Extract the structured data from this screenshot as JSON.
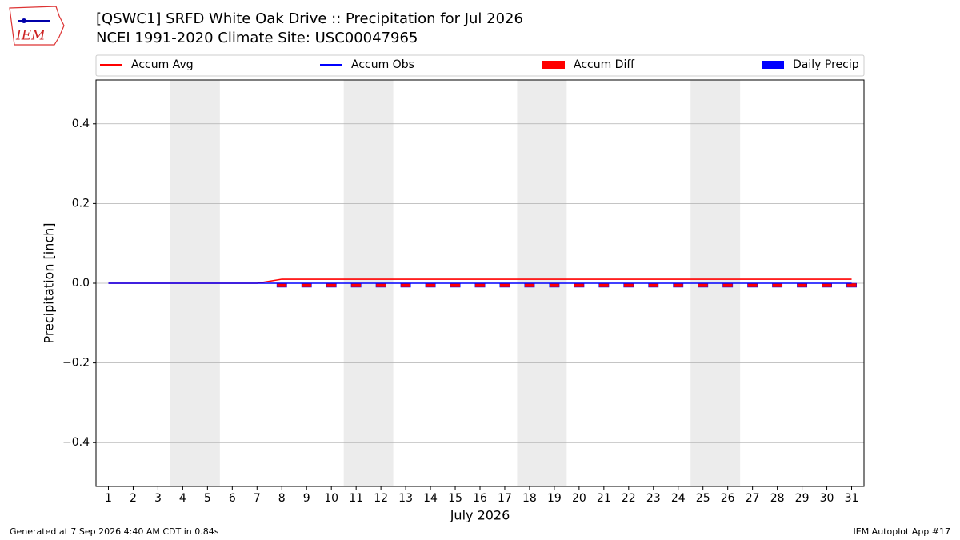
{
  "logo_text": "IEM",
  "chart_data": {
    "type": "line",
    "title": "[QSWC1] SRFD White Oak Drive :: Precipitation for Jul 2026",
    "subtitle": "NCEI 1991-2020 Climate Site: USC00047965",
    "x_label": "July 2026",
    "y_label": "Precipitation [inch]",
    "footer_left": "Generated at 7 Sep 2026 4:40 AM CDT in 0.84s",
    "footer_right": "IEM Autoplot App #17",
    "x": [
      1,
      2,
      3,
      4,
      5,
      6,
      7,
      8,
      9,
      10,
      11,
      12,
      13,
      14,
      15,
      16,
      17,
      18,
      19,
      20,
      21,
      22,
      23,
      24,
      25,
      26,
      27,
      28,
      29,
      30,
      31
    ],
    "xlim": [
      0.5,
      31.5
    ],
    "ylim": [
      -0.51,
      0.51
    ],
    "yticks": [
      {
        "value": -0.4,
        "label": "−0.4"
      },
      {
        "value": -0.2,
        "label": "−0.2"
      },
      {
        "value": 0,
        "label": "0.0"
      },
      0.2,
      0.4
    ],
    "grid": true,
    "shaded_spans": [
      [
        3.5,
        5.5
      ],
      [
        10.5,
        12.5
      ],
      [
        17.5,
        19.5
      ],
      [
        24.5,
        26.5
      ]
    ],
    "series": [
      {
        "name": "Accum Avg",
        "type": "line",
        "color": "#ff0000",
        "values": [
          0,
          0,
          0,
          0,
          0,
          0,
          0,
          0.01,
          0.01,
          0.01,
          0.01,
          0.01,
          0.01,
          0.01,
          0.01,
          0.01,
          0.01,
          0.01,
          0.01,
          0.01,
          0.01,
          0.01,
          0.01,
          0.01,
          0.01,
          0.01,
          0.01,
          0.01,
          0.01,
          0.01,
          0.01
        ]
      },
      {
        "name": "Accum Obs",
        "type": "line",
        "color": "#0000ff",
        "values": [
          0,
          0,
          0,
          0,
          0,
          0,
          0,
          0,
          0,
          0,
          0,
          0,
          0,
          0,
          0,
          0,
          0,
          0,
          0,
          0,
          0,
          0,
          0,
          0,
          0,
          0,
          0,
          0,
          0,
          0,
          0
        ]
      },
      {
        "name": "Accum Diff",
        "type": "bar",
        "color": "#ff0000",
        "values": [
          0,
          0,
          0,
          0,
          0,
          0,
          0,
          -0.01,
          -0.01,
          -0.01,
          -0.01,
          -0.01,
          -0.01,
          -0.01,
          -0.01,
          -0.01,
          -0.01,
          -0.01,
          -0.01,
          -0.01,
          -0.01,
          -0.01,
          -0.01,
          -0.01,
          -0.01,
          -0.01,
          -0.01,
          -0.01,
          -0.01,
          -0.01,
          -0.01
        ]
      },
      {
        "name": "Daily Precip",
        "type": "bar",
        "color": "#0000ff",
        "values": [
          0,
          0,
          0,
          0,
          0,
          0,
          0,
          0,
          0,
          0,
          0,
          0,
          0,
          0,
          0,
          0,
          0,
          0,
          0,
          0,
          0,
          0,
          0,
          0,
          0,
          0,
          0,
          0,
          0,
          0,
          0
        ]
      }
    ]
  }
}
